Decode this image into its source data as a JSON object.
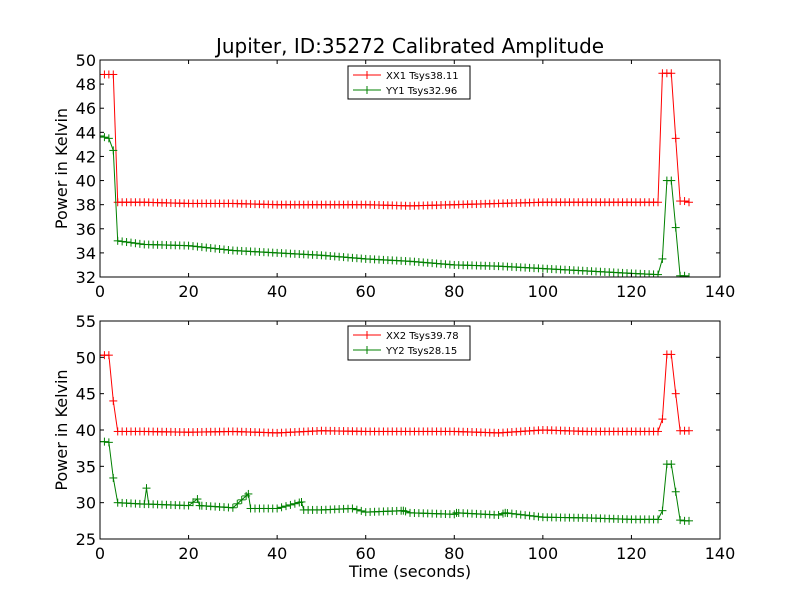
{
  "chart_data": [
    {
      "type": "line",
      "title": "Jupiter, ID:35272 Calibrated Amplitude",
      "xlabel": "",
      "ylabel": "Power in Kelvin",
      "xlim": [
        0,
        140
      ],
      "ylim": [
        32,
        50
      ],
      "xticks": [
        "0",
        "20",
        "40",
        "60",
        "80",
        "100",
        "120",
        "140"
      ],
      "yticks": [
        "32",
        "34",
        "36",
        "38",
        "40",
        "42",
        "44",
        "46",
        "48",
        "50"
      ],
      "grid": false,
      "legend_position": "top-center",
      "series": [
        {
          "name": "XX1 Tsys38.11",
          "color": "#ff0000",
          "marker": "plus",
          "x": [
            0,
            1,
            2,
            3,
            4,
            10,
            20,
            30,
            40,
            50,
            60,
            70,
            80,
            90,
            100,
            110,
            120,
            126,
            127,
            128,
            129,
            130,
            131,
            132,
            133
          ],
          "y": [
            48.8,
            48.8,
            48.8,
            48.8,
            38.2,
            38.2,
            38.1,
            38.1,
            38.0,
            38.0,
            38.0,
            37.9,
            38.0,
            38.1,
            38.2,
            38.2,
            38.2,
            38.2,
            48.9,
            48.9,
            48.9,
            43.5,
            38.3,
            38.3,
            38.2
          ]
        },
        {
          "name": "YY1 Tsys32.96",
          "color": "#008000",
          "marker": "plus",
          "x": [
            0,
            1,
            2,
            3,
            4,
            10,
            20,
            30,
            40,
            50,
            60,
            70,
            80,
            90,
            100,
            110,
            120,
            126,
            127,
            128,
            129,
            130,
            131,
            132,
            133
          ],
          "y": [
            43.7,
            43.6,
            43.5,
            42.5,
            35.0,
            34.7,
            34.6,
            34.2,
            34.0,
            33.8,
            33.5,
            33.3,
            33.0,
            32.9,
            32.7,
            32.5,
            32.3,
            32.2,
            33.5,
            40.0,
            40.0,
            36.1,
            32.1,
            32.1,
            32.0
          ]
        }
      ]
    },
    {
      "type": "line",
      "title": "",
      "xlabel": "Time (seconds)",
      "ylabel": "Power in Kelvin",
      "xlim": [
        0,
        140
      ],
      "ylim": [
        25,
        55
      ],
      "xticks": [
        "0",
        "20",
        "40",
        "60",
        "80",
        "100",
        "120",
        "140"
      ],
      "yticks": [
        "25",
        "30",
        "35",
        "40",
        "45",
        "50",
        "55"
      ],
      "grid": false,
      "legend_position": "top-center",
      "series": [
        {
          "name": "XX2 Tsys39.78",
          "color": "#ff0000",
          "marker": "plus",
          "x": [
            0,
            1,
            2,
            3,
            4,
            10,
            20,
            30,
            40,
            50,
            60,
            70,
            80,
            90,
            100,
            110,
            120,
            126,
            127,
            128,
            129,
            130,
            131,
            132,
            133
          ],
          "y": [
            50.3,
            50.3,
            50.3,
            44.0,
            39.8,
            39.8,
            39.7,
            39.8,
            39.6,
            39.9,
            39.8,
            39.8,
            39.8,
            39.6,
            40.0,
            39.8,
            39.8,
            39.8,
            41.5,
            50.4,
            50.4,
            45.0,
            39.9,
            39.9,
            39.9
          ]
        },
        {
          "name": "YY2 Tsys28.15",
          "color": "#008000",
          "marker": "plus",
          "x": [
            0,
            1,
            2,
            3,
            4,
            10,
            10.5,
            11,
            20,
            22,
            22.5,
            30,
            33.5,
            34,
            40,
            45.5,
            46,
            50,
            57,
            60,
            68.5,
            70,
            80,
            80.5,
            90,
            91.5,
            100,
            110,
            120,
            126,
            127,
            128,
            129,
            130,
            131,
            132,
            133
          ],
          "y": [
            38.4,
            38.4,
            38.3,
            33.4,
            30.0,
            29.8,
            32.0,
            29.8,
            29.6,
            30.5,
            29.6,
            29.3,
            31.2,
            29.2,
            29.2,
            30.1,
            29.0,
            29.0,
            29.2,
            28.7,
            28.9,
            28.6,
            28.4,
            28.6,
            28.3,
            28.6,
            28.0,
            27.9,
            27.7,
            27.7,
            28.9,
            35.3,
            35.3,
            31.5,
            27.6,
            27.5,
            27.5
          ]
        }
      ]
    }
  ]
}
